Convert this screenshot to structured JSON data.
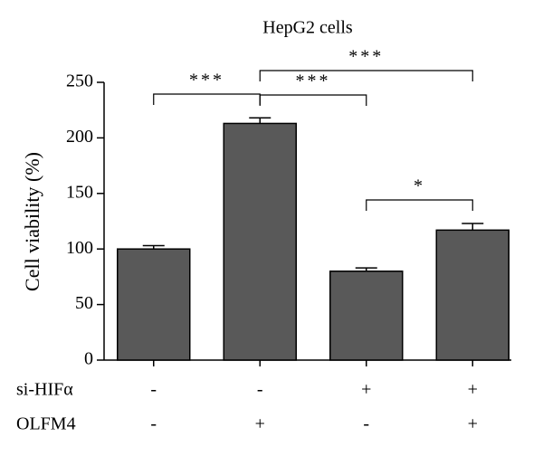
{
  "chart_data": {
    "type": "bar",
    "title": "HepG2 cells",
    "y_label": "Cell viability (%)",
    "categories": [
      null,
      null,
      null,
      null
    ],
    "values": [
      100,
      213,
      80,
      117
    ],
    "errors": [
      3,
      5,
      3,
      6
    ],
    "color": "#595959",
    "ylim": [
      0,
      250
    ],
    "yticks": [
      0,
      50,
      100,
      150,
      200,
      250
    ],
    "conditions": [
      {
        "name": "si-HIFα",
        "values": [
          "-",
          "-",
          "+",
          "+"
        ]
      },
      {
        "name": "OLFM4",
        "values": [
          "-",
          "+",
          "-",
          "+"
        ]
      }
    ],
    "significance": [
      {
        "from": 0,
        "to": 1,
        "label": "***"
      },
      {
        "from": 1,
        "to": 3,
        "label": "***"
      },
      {
        "from": 1,
        "to": 2,
        "label": "***"
      },
      {
        "from": 2,
        "to": 3,
        "label": "*"
      }
    ]
  }
}
